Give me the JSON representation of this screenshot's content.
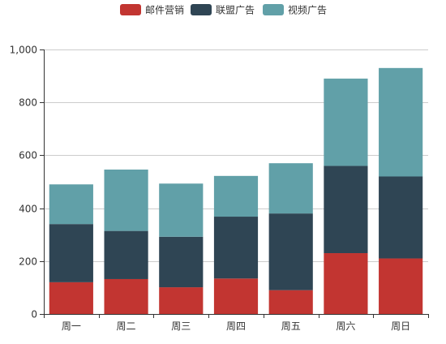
{
  "chart_data": {
    "type": "bar",
    "stacked": true,
    "categories": [
      "周一",
      "周二",
      "周三",
      "周四",
      "周五",
      "周六",
      "周日"
    ],
    "series": [
      {
        "name": "邮件营销",
        "color": "#c23531",
        "values": [
          120,
          132,
          101,
          134,
          90,
          230,
          210
        ]
      },
      {
        "name": "联盟广告",
        "color": "#2f4554",
        "values": [
          220,
          182,
          191,
          234,
          290,
          330,
          310
        ]
      },
      {
        "name": "视频广告",
        "color": "#61a0a8",
        "values": [
          150,
          232,
          201,
          154,
          190,
          330,
          410
        ]
      }
    ],
    "ylim": [
      0,
      1000
    ],
    "yticks": [
      "0",
      "200",
      "400",
      "600",
      "800",
      "1,000"
    ],
    "ytick_values": [
      0,
      200,
      400,
      600,
      800,
      1000
    ],
    "grid": true,
    "legend_position": "top-center"
  }
}
